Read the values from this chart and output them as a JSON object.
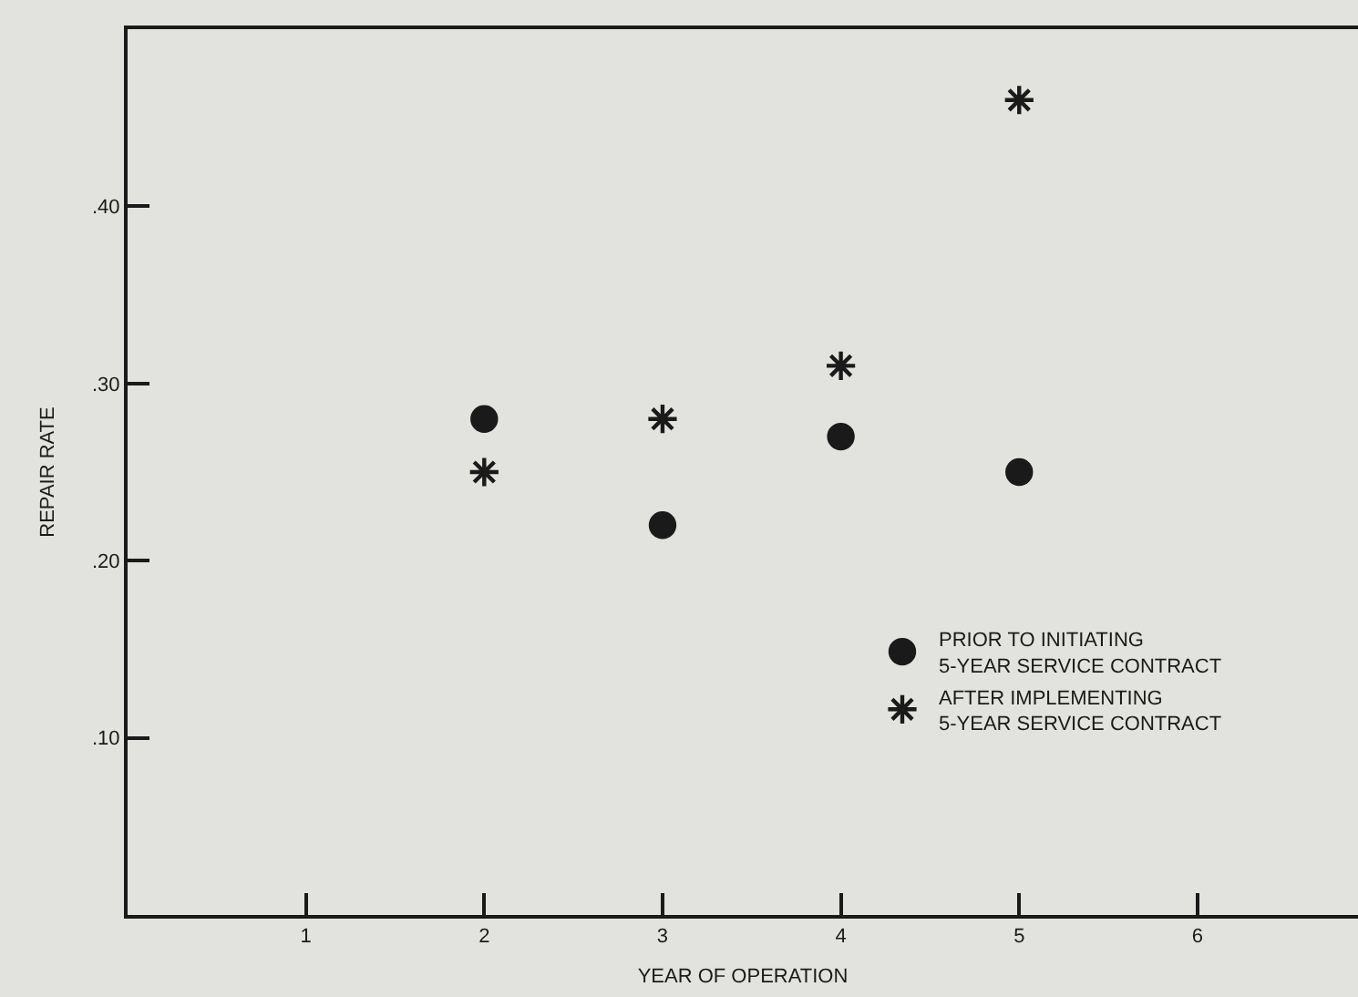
{
  "chart_data": {
    "type": "scatter",
    "xlabel": "YEAR OF OPERATION",
    "ylabel": "REPAIR RATE",
    "x": [
      2,
      3,
      4,
      5
    ],
    "series": [
      {
        "name": "PRIOR TO INITIATING 5-YEAR SERVICE CONTRACT",
        "color": "#1a1a1a",
        "marker": "circle",
        "values": [
          0.28,
          0.22,
          0.27,
          0.25
        ]
      },
      {
        "name": "AFTER IMPLEMENTING 5-YEAR SERVICE CONTRACT",
        "color": "#1a1a1a",
        "marker": "cross",
        "values": [
          0.25,
          0.28,
          0.31,
          0.46
        ]
      }
    ],
    "xlim": [
      0,
      6.9
    ],
    "xticks": [
      1,
      2,
      3,
      4,
      5,
      6
    ],
    "ylim": [
      0,
      0.5
    ],
    "yticks": [
      {
        "value": 0.1,
        "label": ".10"
      },
      {
        "value": 0.2,
        "label": ".20"
      },
      {
        "value": 0.3,
        "label": ".30"
      },
      {
        "value": 0.4,
        "label": ".40"
      }
    ],
    "grid": false,
    "legend": "bottom right"
  }
}
